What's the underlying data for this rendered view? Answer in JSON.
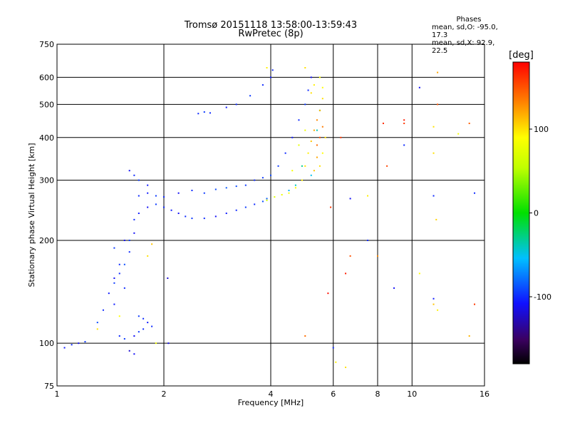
{
  "title_line1": "Tromsø 20151118 13:58:00-13:59:43",
  "title_line2": "RwPretec (8p)",
  "phase_box": {
    "title": "Phases",
    "line_o": "mean, sd,O: -95.0, 17.3",
    "line_x": "mean, sd,X:  92.9, 22.5"
  },
  "colorbar": {
    "unit_label": "[deg]",
    "tick_labels": [
      "100",
      "0",
      "-100"
    ],
    "tick_values": [
      100,
      0,
      -100
    ],
    "range": [
      -180,
      180
    ]
  },
  "chart_data": {
    "type": "scatter",
    "xlabel": "Frequency [MHz]",
    "ylabel": "Stationary phase Virtual Height [km]",
    "x_scale": "log",
    "y_scale": "log",
    "xlim": [
      1,
      16
    ],
    "ylim": [
      75,
      750
    ],
    "x_ticks": [
      1,
      2,
      4,
      6,
      8,
      10,
      16
    ],
    "x_tick_labels": [
      "1",
      "2",
      "4",
      "6",
      "8",
      "10",
      "16"
    ],
    "y_ticks": [
      75,
      100,
      200,
      300,
      400,
      500,
      600,
      750
    ],
    "y_tick_labels": [
      "75",
      "100",
      "200",
      "300",
      "400",
      "500",
      "600",
      "750"
    ],
    "grid": true,
    "colorscale": "rainbow",
    "series": [
      {
        "name": "O",
        "points": [
          [
            1.05,
            97,
            -105
          ],
          [
            1.1,
            99,
            -100
          ],
          [
            1.15,
            100,
            -110
          ],
          [
            1.2,
            101,
            -95
          ],
          [
            1.3,
            115,
            -90
          ],
          [
            1.35,
            125,
            -100
          ],
          [
            1.4,
            140,
            -105
          ],
          [
            1.45,
            150,
            -95
          ],
          [
            1.5,
            160,
            -100
          ],
          [
            1.45,
            155,
            -110
          ],
          [
            1.55,
            170,
            -90
          ],
          [
            1.6,
            185,
            -100
          ],
          [
            1.6,
            200,
            -95
          ],
          [
            1.65,
            210,
            -110
          ],
          [
            1.55,
            145,
            -100
          ],
          [
            1.7,
            120,
            -95
          ],
          [
            1.75,
            118,
            -100
          ],
          [
            1.8,
            115,
            -105
          ],
          [
            1.85,
            112,
            -100
          ],
          [
            1.65,
            105,
            -110
          ],
          [
            1.7,
            108,
            -95
          ],
          [
            1.75,
            110,
            -100
          ],
          [
            1.6,
            95,
            -120
          ],
          [
            1.65,
            93,
            -110
          ],
          [
            1.5,
            105,
            -100
          ],
          [
            1.55,
            103,
            -95
          ],
          [
            1.45,
            130,
            -105
          ],
          [
            1.5,
            170,
            -100
          ],
          [
            1.55,
            200,
            -110
          ],
          [
            1.45,
            190,
            -95
          ],
          [
            1.65,
            230,
            -100
          ],
          [
            1.7,
            240,
            -105
          ],
          [
            1.8,
            250,
            -110
          ],
          [
            1.9,
            255,
            -95
          ],
          [
            2.0,
            250,
            -100
          ],
          [
            2.1,
            245,
            -105
          ],
          [
            2.2,
            240,
            -110
          ],
          [
            2.3,
            235,
            -100
          ],
          [
            2.4,
            232,
            -95
          ],
          [
            2.6,
            232,
            -100
          ],
          [
            2.8,
            235,
            -110
          ],
          [
            3.0,
            240,
            -105
          ],
          [
            3.2,
            245,
            -100
          ],
          [
            3.4,
            250,
            -95
          ],
          [
            3.6,
            255,
            -100
          ],
          [
            3.8,
            260,
            -90
          ],
          [
            3.9,
            265,
            -85
          ],
          [
            1.7,
            270,
            -100
          ],
          [
            1.8,
            275,
            -105
          ],
          [
            1.9,
            270,
            -95
          ],
          [
            2.0,
            268,
            -100
          ],
          [
            2.2,
            275,
            -110
          ],
          [
            2.4,
            280,
            -100
          ],
          [
            2.6,
            275,
            -95
          ],
          [
            2.8,
            282,
            -90
          ],
          [
            3.0,
            285,
            -85
          ],
          [
            3.2,
            288,
            -90
          ],
          [
            3.4,
            290,
            -95
          ],
          [
            3.6,
            300,
            -100
          ],
          [
            3.8,
            305,
            -95
          ],
          [
            4.0,
            310,
            -90
          ],
          [
            4.2,
            330,
            -95
          ],
          [
            4.4,
            360,
            -100
          ],
          [
            4.6,
            400,
            -105
          ],
          [
            4.8,
            450,
            -100
          ],
          [
            5.0,
            500,
            -95
          ],
          [
            5.1,
            550,
            -100
          ],
          [
            5.2,
            600,
            -110
          ],
          [
            1.6,
            320,
            -110
          ],
          [
            1.65,
            310,
            -100
          ],
          [
            1.7,
            300,
            -95
          ],
          [
            1.8,
            290,
            -105
          ],
          [
            2.5,
            470,
            -100
          ],
          [
            2.6,
            475,
            -95
          ],
          [
            2.7,
            472,
            -100
          ],
          [
            3.0,
            490,
            -105
          ],
          [
            3.2,
            500,
            -100
          ],
          [
            3.5,
            530,
            -95
          ],
          [
            3.8,
            570,
            -100
          ],
          [
            4.0,
            600,
            -105
          ],
          [
            4.05,
            630,
            -100
          ],
          [
            2.06,
            100,
            -110
          ],
          [
            2.05,
            155,
            -120
          ],
          [
            7.5,
            200,
            -100
          ],
          [
            8.9,
            145,
            -110
          ],
          [
            9.5,
            380,
            -100
          ],
          [
            10.5,
            560,
            -110
          ],
          [
            11.5,
            270,
            -100
          ],
          [
            11.5,
            135,
            -105
          ],
          [
            6.0,
            97,
            -100
          ],
          [
            6.7,
            265,
            -110
          ],
          [
            15,
            275,
            -100
          ],
          [
            4.5,
            280,
            -60
          ],
          [
            4.7,
            290,
            -40
          ],
          [
            4.9,
            330,
            -30
          ],
          [
            5.2,
            310,
            -50
          ],
          [
            5.4,
            420,
            -40
          ],
          [
            5.5,
            480,
            -20
          ]
        ]
      },
      {
        "name": "X",
        "points": [
          [
            3.9,
            262,
            60
          ],
          [
            4.1,
            268,
            70
          ],
          [
            4.3,
            272,
            80
          ],
          [
            4.5,
            275,
            85
          ],
          [
            4.7,
            285,
            90
          ],
          [
            4.9,
            300,
            95
          ],
          [
            5.0,
            330,
            100
          ],
          [
            5.1,
            360,
            95
          ],
          [
            5.2,
            390,
            110
          ],
          [
            5.3,
            420,
            120
          ],
          [
            5.4,
            450,
            130
          ],
          [
            5.5,
            480,
            115
          ],
          [
            5.6,
            520,
            100
          ],
          [
            5.6,
            560,
            90
          ],
          [
            5.5,
            600,
            85
          ],
          [
            5.3,
            570,
            95
          ],
          [
            5.2,
            540,
            100
          ],
          [
            5.4,
            380,
            140
          ],
          [
            5.5,
            400,
            150
          ],
          [
            5.6,
            430,
            135
          ],
          [
            5.4,
            350,
            120
          ],
          [
            5.3,
            320,
            110
          ],
          [
            5.5,
            330,
            100
          ],
          [
            5.6,
            360,
            90
          ],
          [
            5.7,
            400,
            100
          ],
          [
            5.0,
            420,
            80
          ],
          [
            4.8,
            380,
            75
          ],
          [
            4.6,
            320,
            85
          ],
          [
            5.0,
            640,
            100
          ],
          [
            3.9,
            640,
            95
          ],
          [
            1.85,
            195,
            110
          ],
          [
            1.8,
            180,
            100
          ],
          [
            1.5,
            120,
            90
          ],
          [
            1.3,
            110,
            100
          ],
          [
            1.9,
            100,
            85
          ],
          [
            5.0,
            105,
            140
          ],
          [
            6.5,
            85,
            100
          ],
          [
            6.1,
            88,
            95
          ],
          [
            6.3,
            400,
            160
          ],
          [
            6.5,
            160,
            170
          ],
          [
            6.7,
            180,
            150
          ],
          [
            8.3,
            440,
            165
          ],
          [
            8.5,
            330,
            155
          ],
          [
            9.5,
            450,
            170
          ],
          [
            9.5,
            440,
            160
          ],
          [
            10.5,
            160,
            90
          ],
          [
            11.5,
            130,
            110
          ],
          [
            11.5,
            360,
            100
          ],
          [
            11.8,
            620,
            120
          ],
          [
            11.8,
            500,
            150
          ],
          [
            11.5,
            430,
            100
          ],
          [
            13.5,
            410,
            85
          ],
          [
            14.5,
            105,
            115
          ],
          [
            14.5,
            440,
            145
          ],
          [
            15.0,
            130,
            160
          ],
          [
            5.8,
            140,
            175
          ],
          [
            5.9,
            250,
            160
          ],
          [
            7.5,
            270,
            95
          ],
          [
            8.0,
            180,
            130
          ],
          [
            11.7,
            230,
            105
          ],
          [
            11.8,
            125,
            95
          ]
        ]
      }
    ]
  }
}
